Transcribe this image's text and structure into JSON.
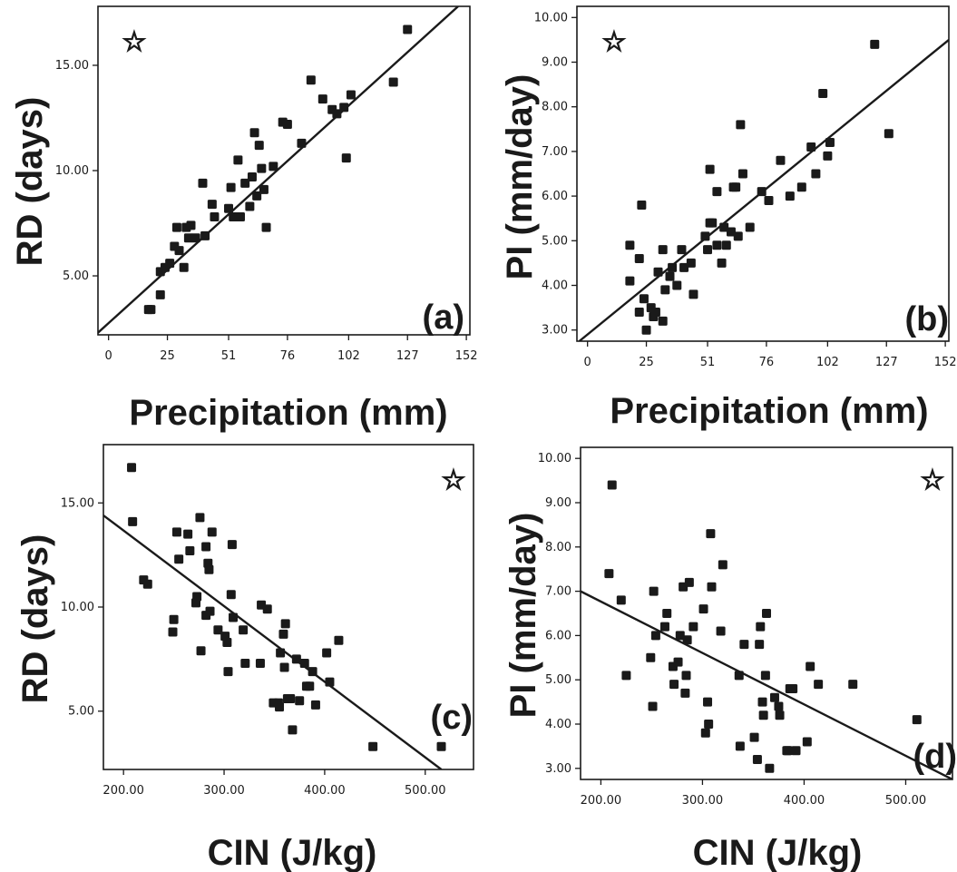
{
  "chart_data": [
    {
      "type": "scatter",
      "panel_label": "(a)",
      "xlabel": "Precipitation (mm)",
      "ylabel": "RD (days)",
      "xticks": [
        0,
        25,
        51,
        76,
        102,
        127,
        152
      ],
      "xtick_labels": [
        "0",
        "25",
        "51",
        "76",
        "102",
        "127",
        "152"
      ],
      "yticks": [
        5,
        10,
        15
      ],
      "ytick_labels": [
        "5.00",
        "10.00",
        "15.00"
      ],
      "xlim": [
        -4.5,
        153.5
      ],
      "ylim": [
        2.2,
        17.8
      ],
      "marker": "☆",
      "fit_line": [
        [
          -4.5,
          2.3
        ],
        [
          148.5,
          17.8
        ]
      ],
      "points": [
        [
          17,
          3.4
        ],
        [
          18,
          3.4
        ],
        [
          22,
          4.1
        ],
        [
          22,
          5.2
        ],
        [
          24,
          5.4
        ],
        [
          26,
          5.6
        ],
        [
          28,
          6.4
        ],
        [
          29,
          7.3
        ],
        [
          30,
          6.2
        ],
        [
          32,
          5.4
        ],
        [
          33,
          7.3
        ],
        [
          34,
          6.8
        ],
        [
          35,
          7.4
        ],
        [
          37,
          6.8
        ],
        [
          40,
          9.4
        ],
        [
          41,
          6.9
        ],
        [
          44,
          8.4
        ],
        [
          45,
          7.8
        ],
        [
          51,
          8.2
        ],
        [
          52,
          9.2
        ],
        [
          53,
          7.8
        ],
        [
          55,
          10.5
        ],
        [
          56,
          7.8
        ],
        [
          58,
          9.4
        ],
        [
          60,
          8.3
        ],
        [
          61,
          9.7
        ],
        [
          62,
          11.8
        ],
        [
          63,
          8.8
        ],
        [
          64,
          11.2
        ],
        [
          65,
          10.1
        ],
        [
          66,
          9.1
        ],
        [
          67,
          7.3
        ],
        [
          70,
          10.2
        ],
        [
          74,
          12.3
        ],
        [
          76,
          12.2
        ],
        [
          82,
          11.3
        ],
        [
          86,
          14.3
        ],
        [
          91,
          13.4
        ],
        [
          95,
          12.9
        ],
        [
          97,
          12.7
        ],
        [
          100,
          13.0
        ],
        [
          101,
          10.6
        ],
        [
          103,
          13.6
        ],
        [
          121,
          14.2
        ],
        [
          127,
          16.7
        ]
      ]
    },
    {
      "type": "scatter",
      "panel_label": "(b)",
      "xlabel": "Precipitation (mm)",
      "ylabel": "PI (mm/day)",
      "xticks": [
        0,
        25,
        51,
        76,
        102,
        127,
        152
      ],
      "xtick_labels": [
        "0",
        "25",
        "51",
        "76",
        "102",
        "127",
        "152"
      ],
      "yticks": [
        3,
        4,
        5,
        6,
        7,
        8,
        9,
        10
      ],
      "ytick_labels": [
        "3.00",
        "4.00",
        "5.00",
        "6.00",
        "7.00",
        "8.00",
        "9.00",
        "10.00"
      ],
      "xlim": [
        -4.5,
        153.5
      ],
      "ylim": [
        2.75,
        10.25
      ],
      "marker": "☆",
      "fit_line": [
        [
          -3.5,
          2.75
        ],
        [
          153.5,
          9.5
        ]
      ],
      "points": [
        [
          18,
          4.9
        ],
        [
          18,
          4.1
        ],
        [
          22,
          3.4
        ],
        [
          22,
          4.6
        ],
        [
          23,
          5.8
        ],
        [
          24,
          3.7
        ],
        [
          25,
          3.0
        ],
        [
          27,
          3.5
        ],
        [
          28,
          3.3
        ],
        [
          29,
          3.4
        ],
        [
          30,
          4.3
        ],
        [
          32,
          4.8
        ],
        [
          32,
          3.2
        ],
        [
          33,
          3.9
        ],
        [
          35,
          4.2
        ],
        [
          36,
          4.4
        ],
        [
          38,
          4.0
        ],
        [
          40,
          4.8
        ],
        [
          41,
          4.4
        ],
        [
          44,
          4.5
        ],
        [
          45,
          3.8
        ],
        [
          50,
          5.1
        ],
        [
          51,
          4.8
        ],
        [
          52,
          5.4
        ],
        [
          52,
          6.6
        ],
        [
          53,
          5.4
        ],
        [
          55,
          6.1
        ],
        [
          55,
          4.9
        ],
        [
          57,
          4.5
        ],
        [
          58,
          5.3
        ],
        [
          59,
          4.9
        ],
        [
          61,
          5.2
        ],
        [
          62,
          6.2
        ],
        [
          63,
          6.2
        ],
        [
          64,
          5.1
        ],
        [
          65,
          7.6
        ],
        [
          66,
          6.5
        ],
        [
          69,
          5.3
        ],
        [
          74,
          6.1
        ],
        [
          77,
          5.9
        ],
        [
          82,
          6.8
        ],
        [
          86,
          6.0
        ],
        [
          91,
          6.2
        ],
        [
          95,
          7.1
        ],
        [
          97,
          6.5
        ],
        [
          100,
          8.3
        ],
        [
          102,
          6.9
        ],
        [
          103,
          7.2
        ],
        [
          122,
          9.4
        ],
        [
          128,
          7.4
        ]
      ]
    },
    {
      "type": "scatter",
      "panel_label": "(c)",
      "xlabel": "CIN (J/kg)",
      "ylabel": "RD (days)",
      "xticks": [
        200,
        300,
        400,
        500
      ],
      "xtick_labels": [
        "200.00",
        "300.00",
        "400.00",
        "500.00"
      ],
      "yticks": [
        5,
        10,
        15
      ],
      "ytick_labels": [
        "5.00",
        "10.00",
        "15.00"
      ],
      "xlim": [
        180,
        548
      ],
      "ylim": [
        2.2,
        17.8
      ],
      "marker": "☆",
      "fit_line": [
        [
          180,
          14.4
        ],
        [
          516,
          2.2
        ]
      ],
      "points": [
        [
          208,
          16.7
        ],
        [
          209,
          14.1
        ],
        [
          220,
          11.3
        ],
        [
          224,
          11.1
        ],
        [
          249,
          8.8
        ],
        [
          250,
          9.4
        ],
        [
          253,
          13.6
        ],
        [
          255,
          12.3
        ],
        [
          264,
          13.5
        ],
        [
          266,
          12.7
        ],
        [
          272,
          10.2
        ],
        [
          273,
          10.5
        ],
        [
          276,
          14.3
        ],
        [
          277,
          7.9
        ],
        [
          282,
          9.6
        ],
        [
          282,
          12.9
        ],
        [
          284,
          12.1
        ],
        [
          285,
          11.8
        ],
        [
          286,
          9.8
        ],
        [
          288,
          13.6
        ],
        [
          294,
          8.9
        ],
        [
          301,
          8.6
        ],
        [
          303,
          8.3
        ],
        [
          304,
          6.9
        ],
        [
          307,
          10.6
        ],
        [
          308,
          13.0
        ],
        [
          309,
          9.5
        ],
        [
          319,
          8.9
        ],
        [
          321,
          7.3
        ],
        [
          336,
          7.3
        ],
        [
          337,
          10.1
        ],
        [
          343,
          9.9
        ],
        [
          349,
          5.4
        ],
        [
          354,
          5.4
        ],
        [
          355,
          5.2
        ],
        [
          356,
          7.8
        ],
        [
          359,
          8.7
        ],
        [
          360,
          7.1
        ],
        [
          361,
          9.2
        ],
        [
          363,
          5.6
        ],
        [
          366,
          5.6
        ],
        [
          368,
          4.1
        ],
        [
          372,
          7.5
        ],
        [
          375,
          5.5
        ],
        [
          380,
          7.3
        ],
        [
          382,
          6.2
        ],
        [
          385,
          6.2
        ],
        [
          388,
          6.9
        ],
        [
          391,
          5.3
        ],
        [
          402,
          7.8
        ],
        [
          405,
          6.4
        ],
        [
          414,
          8.4
        ],
        [
          448,
          3.3
        ],
        [
          516,
          3.3
        ]
      ]
    },
    {
      "type": "scatter",
      "panel_label": "(d)",
      "xlabel": "CIN (J/kg)",
      "ylabel": "PI (mm/day)",
      "xticks": [
        200,
        300,
        400,
        500
      ],
      "xtick_labels": [
        "200.00",
        "300.00",
        "400.00",
        "500.00"
      ],
      "yticks": [
        3,
        4,
        5,
        6,
        7,
        8,
        9,
        10
      ],
      "ytick_labels": [
        "3.00",
        "4.00",
        "5.00",
        "6.00",
        "7.00",
        "8.00",
        "9.00",
        "10.00"
      ],
      "xlim": [
        180,
        546
      ],
      "ylim": [
        2.75,
        10.25
      ],
      "marker": "☆",
      "fit_line": [
        [
          180,
          7.0
        ],
        [
          546,
          2.75
        ]
      ],
      "points": [
        [
          208,
          7.4
        ],
        [
          211,
          9.4
        ],
        [
          220,
          6.8
        ],
        [
          225,
          5.1
        ],
        [
          249,
          5.5
        ],
        [
          251,
          4.4
        ],
        [
          252,
          7.0
        ],
        [
          254,
          6.0
        ],
        [
          263,
          6.2
        ],
        [
          265,
          6.5
        ],
        [
          271,
          5.3
        ],
        [
          272,
          4.9
        ],
        [
          276,
          5.4
        ],
        [
          278,
          6.0
        ],
        [
          281,
          7.1
        ],
        [
          283,
          4.7
        ],
        [
          284,
          5.1
        ],
        [
          285,
          5.9
        ],
        [
          287,
          7.2
        ],
        [
          291,
          6.2
        ],
        [
          301,
          6.6
        ],
        [
          303,
          3.8
        ],
        [
          305,
          4.5
        ],
        [
          306,
          4.0
        ],
        [
          308,
          8.3
        ],
        [
          309,
          7.1
        ],
        [
          318,
          6.1
        ],
        [
          320,
          7.6
        ],
        [
          336,
          5.1
        ],
        [
          337,
          3.5
        ],
        [
          341,
          5.8
        ],
        [
          351,
          3.7
        ],
        [
          354,
          3.2
        ],
        [
          356,
          5.8
        ],
        [
          357,
          6.2
        ],
        [
          359,
          4.5
        ],
        [
          360,
          4.2
        ],
        [
          362,
          5.1
        ],
        [
          363,
          6.5
        ],
        [
          366,
          3.0
        ],
        [
          371,
          4.6
        ],
        [
          375,
          4.4
        ],
        [
          376,
          4.2
        ],
        [
          383,
          3.4
        ],
        [
          384,
          3.4
        ],
        [
          386,
          4.8
        ],
        [
          389,
          4.8
        ],
        [
          392,
          3.4
        ],
        [
          403,
          3.6
        ],
        [
          406,
          5.3
        ],
        [
          414,
          4.9
        ],
        [
          448,
          4.9
        ],
        [
          511,
          4.1
        ]
      ]
    }
  ]
}
